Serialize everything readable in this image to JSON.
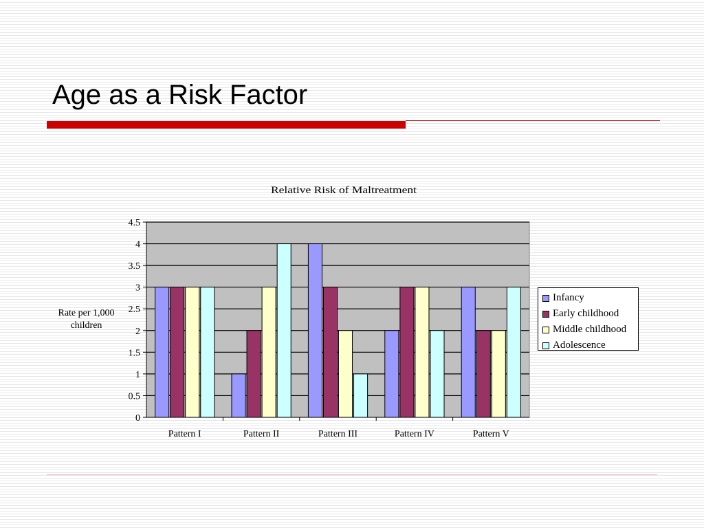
{
  "slide": {
    "title": "Age as a Risk Factor"
  },
  "chart_data": {
    "type": "bar",
    "title": "Relative Risk of Maltreatment",
    "xlabel": "",
    "ylabel": "Rate per 1,000 children",
    "ylim": [
      0,
      4.5
    ],
    "ytick_step": 0.5,
    "yticks": [
      "0",
      "0.5",
      "1",
      "1.5",
      "2",
      "2.5",
      "3",
      "3.5",
      "4",
      "4.5"
    ],
    "grid": true,
    "legend_position": "right",
    "categories": [
      "Pattern I",
      "Pattern II",
      "Pattern III",
      "Pattern IV",
      "Pattern V"
    ],
    "series": [
      {
        "name": "Infancy",
        "color": "#9999ff",
        "values": [
          3,
          1,
          4,
          2,
          3
        ]
      },
      {
        "name": "Early childhood",
        "color": "#993366",
        "values": [
          3,
          2,
          3,
          3,
          2
        ]
      },
      {
        "name": "Middle childhood",
        "color": "#ffffcc",
        "values": [
          3,
          3,
          2,
          3,
          2
        ]
      },
      {
        "name": "Adolescence",
        "color": "#ccffff",
        "values": [
          3,
          4,
          1,
          2,
          3
        ]
      }
    ],
    "plot_background": "#c0c0c0"
  }
}
